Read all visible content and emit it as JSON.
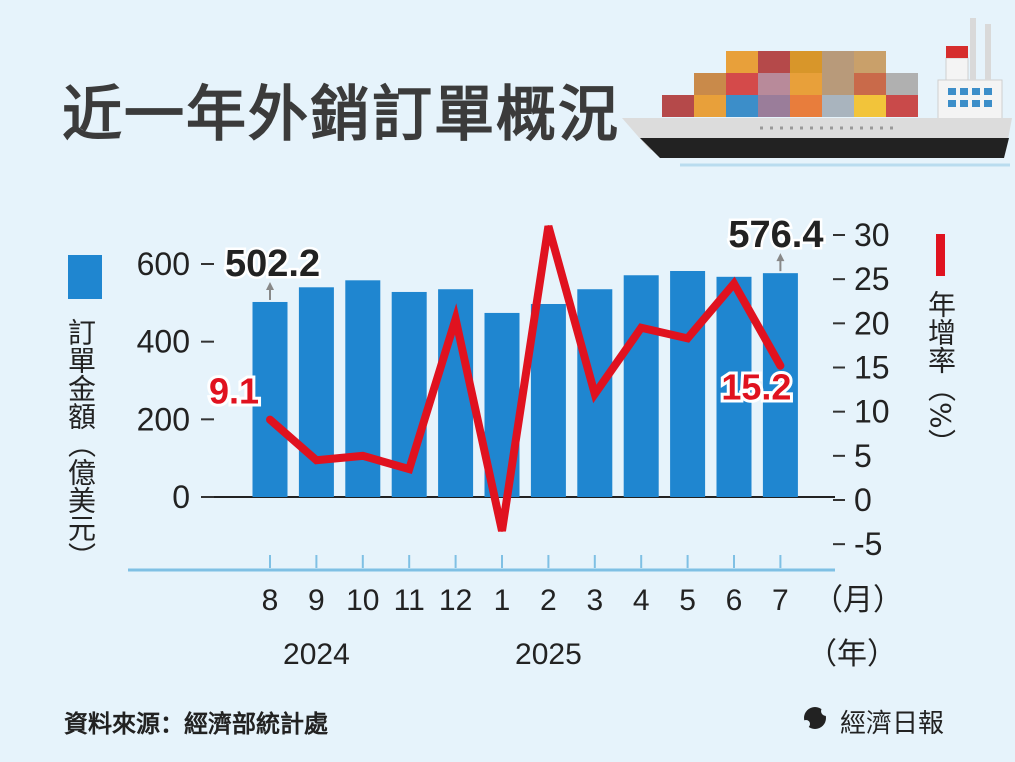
{
  "title": "近一年外銷訂單概況",
  "source": "資料來源：經濟部統計處",
  "brand": "經濟日報",
  "colors": {
    "bar": "#1f86d0",
    "line": "#e0121f",
    "background": "#e6f3fb",
    "axis": "#7fc0e4"
  },
  "chart_data": {
    "type": "bar+line",
    "categories": [
      "8",
      "9",
      "10",
      "11",
      "12",
      "1",
      "2",
      "3",
      "4",
      "5",
      "6",
      "7"
    ],
    "x_unit": "（月）",
    "year_labels": [
      {
        "text": "2024",
        "category": "9"
      },
      {
        "text": "2025",
        "category": "2"
      }
    ],
    "year_unit": "（年）",
    "left_axis": {
      "label": "訂單金額（億美元）",
      "ticks": [
        "0",
        "200",
        "400",
        "600"
      ],
      "ylim": [
        0,
        600
      ]
    },
    "right_axis": {
      "label": "年增率（%）",
      "ticks": [
        "-5",
        "0",
        "5",
        "10",
        "15",
        "20",
        "25",
        "30"
      ],
      "ylim": [
        -5,
        30
      ]
    },
    "series": [
      {
        "type": "bar",
        "axis": "left",
        "values": [
          502.2,
          540,
          558,
          528,
          535,
          474,
          497,
          535,
          571,
          582,
          567,
          576.4
        ]
      },
      {
        "type": "line",
        "axis": "right",
        "values": [
          9.1,
          4.5,
          5,
          3.5,
          20.5,
          -3.5,
          31,
          12,
          19.5,
          18.3,
          24.5,
          15.2
        ]
      }
    ],
    "annotations": [
      {
        "text": "502.2",
        "series": 0,
        "index": 0
      },
      {
        "text": "576.4",
        "series": 0,
        "index": 11
      },
      {
        "text": "9.1",
        "series": 1,
        "index": 0
      },
      {
        "text": "15.2",
        "series": 1,
        "index": 11
      }
    ]
  }
}
